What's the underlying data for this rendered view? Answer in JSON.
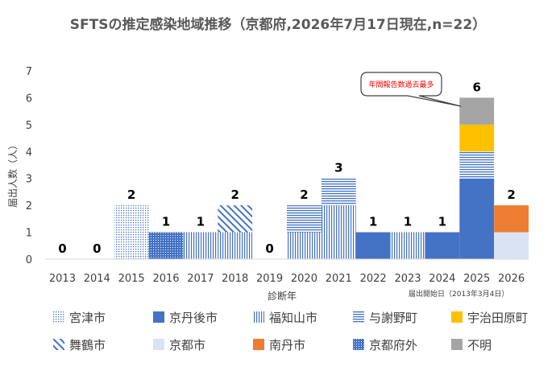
{
  "chart_data": {
    "type": "bar",
    "stacked": true,
    "title": "SFTSの推定感染地域推移（京都府,2026年7月17日現在,n=22）",
    "xlabel": "診断年",
    "ylabel": "届出人数（人）",
    "ylim": [
      0,
      7
    ],
    "yticks": [
      0,
      1,
      2,
      3,
      4,
      5,
      6,
      7
    ],
    "grid": false,
    "legend_position": "bottom",
    "categories": [
      "2013",
      "2014",
      "2015",
      "2016",
      "2017",
      "2018",
      "2019",
      "2020",
      "2021",
      "2022",
      "2023",
      "2024",
      "2025",
      "2026"
    ],
    "totals": [
      0,
      0,
      2,
      1,
      1,
      2,
      0,
      2,
      3,
      1,
      1,
      1,
      6,
      2
    ],
    "series": [
      {
        "name": "宮津市",
        "color": "#4472c4",
        "pattern": "dots-light",
        "values": [
          0,
          0,
          2,
          0,
          0,
          0,
          0,
          0,
          0,
          0,
          0,
          0,
          0,
          0
        ]
      },
      {
        "name": "京丹後市",
        "color": "#4472c4",
        "pattern": "solid",
        "values": [
          0,
          0,
          0,
          0,
          0,
          0,
          0,
          0,
          0,
          1,
          0,
          1,
          3,
          0
        ]
      },
      {
        "name": "福知山市",
        "color": "#4472c4",
        "pattern": "vertical",
        "values": [
          0,
          0,
          0,
          0,
          1,
          1,
          0,
          1,
          2,
          0,
          1,
          0,
          0,
          0
        ]
      },
      {
        "name": "与謝野町",
        "color": "#4472c4",
        "pattern": "horizontal",
        "values": [
          0,
          0,
          0,
          0,
          0,
          0,
          0,
          1,
          1,
          0,
          0,
          0,
          1,
          0
        ]
      },
      {
        "name": "宇治田原町",
        "color": "#ffc000",
        "pattern": "solid",
        "values": [
          0,
          0,
          0,
          0,
          0,
          0,
          0,
          0,
          0,
          0,
          0,
          0,
          1,
          0
        ]
      },
      {
        "name": "舞鶴市",
        "color": "#4472c4",
        "pattern": "diagonal",
        "values": [
          0,
          0,
          0,
          0,
          0,
          1,
          0,
          0,
          0,
          0,
          0,
          0,
          0,
          0
        ]
      },
      {
        "name": "京都市",
        "color": "#dae3f3",
        "pattern": "solid",
        "values": [
          0,
          0,
          0,
          0,
          0,
          0,
          0,
          0,
          0,
          0,
          0,
          0,
          0,
          1
        ]
      },
      {
        "name": "南丹市",
        "color": "#ed7d31",
        "pattern": "solid",
        "values": [
          0,
          0,
          0,
          0,
          0,
          0,
          0,
          0,
          0,
          0,
          0,
          0,
          0,
          1
        ]
      },
      {
        "name": "京都府外",
        "color": "#4472c4",
        "pattern": "dots-dense",
        "values": [
          0,
          0,
          0,
          1,
          0,
          0,
          0,
          0,
          0,
          0,
          0,
          0,
          0,
          0
        ]
      },
      {
        "name": "不明",
        "color": "#a5a5a5",
        "pattern": "solid",
        "values": [
          0,
          0,
          0,
          0,
          0,
          0,
          0,
          0,
          0,
          0,
          0,
          0,
          1,
          0
        ]
      }
    ],
    "annotations": {
      "callout": "年間報告数過去最多",
      "note": "届出開始日（2013年3月4日）"
    }
  }
}
